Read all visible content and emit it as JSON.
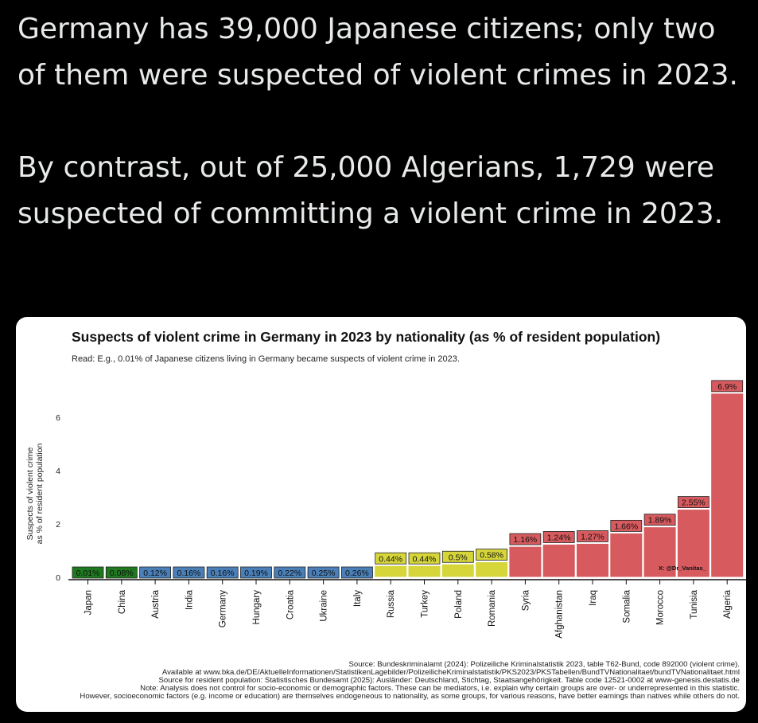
{
  "tweet": {
    "paragraph1": "Germany has 39,000 Japanese citizens; only two of them were suspected of violent crimes in 2023.",
    "paragraph2": "By contrast, out of 25,000 Algerians, 1,729 were suspected of committing a violent crime in 2023."
  },
  "chart_data": {
    "type": "bar",
    "title": "Suspects of violent crime in Germany in 2023 by nationality (as % of resident population)",
    "subtitle": "Read: E.g., 0.01% of Japanese citizens living in Germany became suspects of violent crime in 2023.",
    "ylabel_line1": "Suspects of violent crime",
    "ylabel_line2": "as % of resident population",
    "xlabel": "",
    "ylim": [
      0,
      7.2
    ],
    "yticks": [
      "0",
      "2",
      "4",
      "6"
    ],
    "grid": false,
    "legend": "none",
    "categories": [
      "Japan",
      "China",
      "Austria",
      "India",
      "Germany",
      "Hungary",
      "Croatia",
      "Ukraine",
      "Italy",
      "Russia",
      "Turkey",
      "Poland",
      "Romania",
      "Syria",
      "Afghanistan",
      "Iraq",
      "Somalia",
      "Morocco",
      "Tunisia",
      "Algeria"
    ],
    "values": [
      0.01,
      0.08,
      0.12,
      0.16,
      0.16,
      0.19,
      0.22,
      0.25,
      0.26,
      0.44,
      0.44,
      0.5,
      0.58,
      1.16,
      1.24,
      1.27,
      1.66,
      1.89,
      2.55,
      6.9
    ],
    "labels": [
      "0.01%",
      "0.08%",
      "0.12%",
      "0.16%",
      "0.16%",
      "0.19%",
      "0.22%",
      "0.25%",
      "0.26%",
      "0.44%",
      "0.44%",
      "0.5%",
      "0.58%",
      "1.16%",
      "1.24%",
      "1.27%",
      "1.66%",
      "1.89%",
      "2.55%",
      "6.9%"
    ],
    "groups": [
      "green",
      "green",
      "blue",
      "blue",
      "blue",
      "blue",
      "blue",
      "blue",
      "blue",
      "yellow",
      "yellow",
      "yellow",
      "yellow",
      "red",
      "red",
      "red",
      "red",
      "red",
      "red",
      "red"
    ],
    "colors": {
      "green": "#1f7a1f",
      "blue": "#4a7fb8",
      "yellow": "#d6d63a",
      "red": "#d65a5e"
    },
    "watermark": "X: @Dr_Vanitas_",
    "source_lines": [
      "Source: Bundeskriminalamt (2024): Polizeiliche Kriminalstatistik 2023, table T62-Bund, code 892000 (violent crime).",
      "Available at www.bka.de/DE/AktuelleInformationen/StatistikenLagebilder/PolizeilicheKriminalstatistik/PKS2023/PKSTabellen/BundTVNationalitaet/bundTVNationalitaet.html",
      "Source for resident population: Statistisches Bundesamt (2025): Ausländer: Deutschland, Stichtag, Staatsangehörigkeit. Table code 12521-0002 at www-genesis.destatis.de",
      "Note: Analysis does not control for socio-economic or demographic factors. These can be mediators, i.e. explain why certain groups are over- or underrepresented in this statistic.",
      "However, socioeconomic factors (e.g. income or education) are themselves endogeneous to nationality, as some groups, for various reasons, have better earnings than natives while others do not."
    ]
  }
}
